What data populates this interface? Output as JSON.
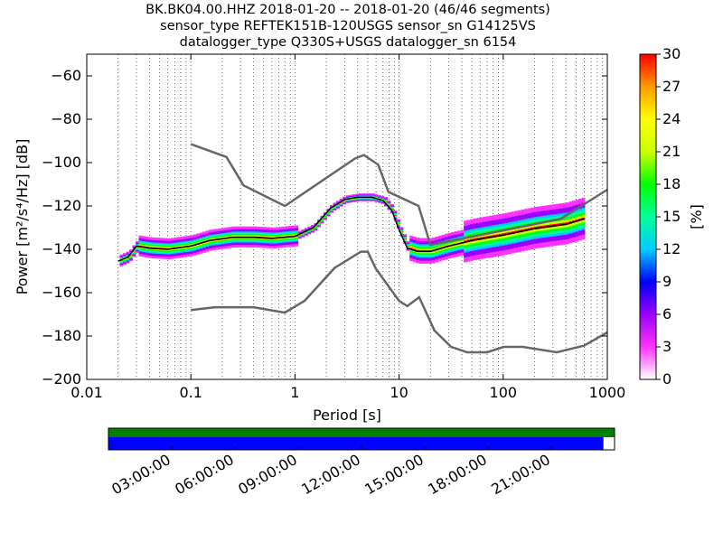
{
  "header": {
    "line1": "BK.BK04.00.HHZ   2018-01-20 -- 2018-01-20  (46/46 segments)",
    "line2": "sensor_type REFTEK151B-120USGS sensor_sn G14125VS",
    "line3": "datalogger_type Q330S+USGS datalogger_sn 6154"
  },
  "chart_data": [
    {
      "type": "heatmap",
      "title": "BK.BK04.00.HHZ   2018-01-20 -- 2018-01-20  (46/46 segments)",
      "xlabel": "Period [s]",
      "ylabel": "Power [m²/s⁴/Hz] [dB]",
      "x_scale": "log",
      "xlim": [
        0.01,
        1000
      ],
      "ylim": [
        -200,
        -50
      ],
      "x_ticks": [
        0.01,
        0.1,
        1,
        10,
        100,
        1000
      ],
      "x_tick_labels": [
        "0.01",
        "0.1",
        "1",
        "10",
        "100",
        "1000"
      ],
      "y_ticks": [
        -200,
        -180,
        -160,
        -140,
        -120,
        -100,
        -80,
        -60
      ],
      "y_tick_labels": [
        "−200",
        "−180",
        "−160",
        "−140",
        "−120",
        "−100",
        "−80",
        "−60"
      ],
      "grid": "dotted vertical at log subdivisions",
      "colorbar": {
        "label": "[%]",
        "min": 0,
        "max": 30,
        "ticks": [
          0,
          3,
          6,
          9,
          12,
          15,
          18,
          21,
          24,
          27,
          30
        ],
        "tick_labels": [
          "0",
          "3",
          "6",
          "9",
          "12",
          "15",
          "18",
          "21",
          "24",
          "27",
          "30"
        ],
        "colors": [
          "#ffffff",
          "#ff33ff",
          "#9900ff",
          "#0000ff",
          "#00ccff",
          "#00ff99",
          "#00ff00",
          "#ccff00",
          "#ffff00",
          "#ff9900",
          "#ff0000"
        ]
      },
      "series": [
        {
          "name": "NHNM",
          "color": "#666666",
          "x": [
            0.1,
            0.22,
            0.32,
            0.8,
            3.8,
            4.6,
            6.3,
            7.9,
            15.4,
            20,
            354.8,
            1000
          ],
          "y": [
            -91.5,
            -97.4,
            -110.5,
            -120.0,
            -98.0,
            -96.5,
            -101.0,
            -113.5,
            -120.0,
            -138.0,
            -126.0,
            -112.5
          ]
        },
        {
          "name": "NLNM",
          "color": "#666666",
          "x": [
            0.1,
            0.17,
            0.4,
            0.8,
            1.24,
            2.4,
            4.3,
            5.0,
            6.0,
            10.0,
            12.0,
            15.6,
            21.9,
            31.6,
            45.0,
            70.0,
            101.0,
            154.0,
            328.0,
            600.0,
            1000.0
          ],
          "y": [
            -168.0,
            -166.7,
            -166.7,
            -169.2,
            -163.7,
            -148.6,
            -141.1,
            -141.1,
            -149.0,
            -163.8,
            -166.2,
            -162.1,
            -177.5,
            -185.0,
            -187.5,
            -187.5,
            -185.0,
            -185.0,
            -187.5,
            -184.4,
            -178.3
          ]
        },
        {
          "name": "median",
          "color": "#000000",
          "x": [
            0.02,
            0.025,
            0.03,
            0.04,
            0.06,
            0.1,
            0.15,
            0.25,
            0.4,
            0.6,
            1.0,
            1.5,
            2.2,
            3.0,
            4.0,
            5.5,
            7.0,
            8.5,
            10.0,
            12.0,
            15.0,
            20.0,
            30.0,
            50.0,
            100.0,
            200.0,
            400.0,
            600.0
          ],
          "y": [
            -145.5,
            -143.5,
            -138.5,
            -139.5,
            -140.0,
            -138.5,
            -136.0,
            -134.5,
            -134.5,
            -135.0,
            -134.0,
            -130.0,
            -121.0,
            -117.0,
            -116.0,
            -116.0,
            -117.5,
            -122.0,
            -131.0,
            -139.5,
            -141.0,
            -141.0,
            -138.5,
            -136.0,
            -133.5,
            -130.5,
            -128.5,
            -126.0
          ]
        }
      ]
    },
    {
      "type": "timeline",
      "bars": [
        {
          "name": "data availability",
          "color": "#008000",
          "start": 0.0,
          "end": 1.0
        },
        {
          "name": "psd segments",
          "color": "#0000ff",
          "start": 0.0,
          "end": 0.978
        }
      ],
      "time_labels": [
        "03:00:00",
        "06:00:00",
        "09:00:00",
        "12:00:00",
        "15:00:00",
        "18:00:00",
        "21:00:00"
      ]
    }
  ]
}
